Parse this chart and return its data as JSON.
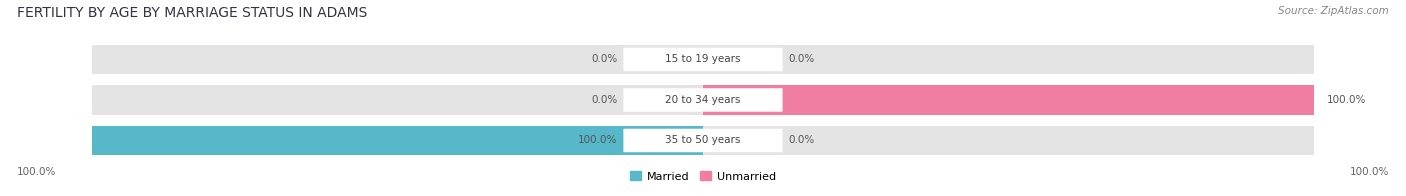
{
  "title": "FERTILITY BY AGE BY MARRIAGE STATUS IN ADAMS",
  "source": "Source: ZipAtlas.com",
  "categories": [
    "15 to 19 years",
    "20 to 34 years",
    "35 to 50 years"
  ],
  "married_values": [
    0.0,
    0.0,
    100.0
  ],
  "unmarried_values": [
    0.0,
    100.0,
    0.0
  ],
  "married_color": "#56b8c8",
  "unmarried_color": "#f07ea0",
  "unmarried_light_color": "#f5b0c8",
  "bar_bg_color": "#e4e4e4",
  "figsize": [
    14.06,
    1.96
  ],
  "dpi": 100,
  "title_fontsize": 10,
  "label_fontsize": 7.5,
  "value_fontsize": 7.5,
  "legend_fontsize": 8,
  "source_fontsize": 7.5
}
